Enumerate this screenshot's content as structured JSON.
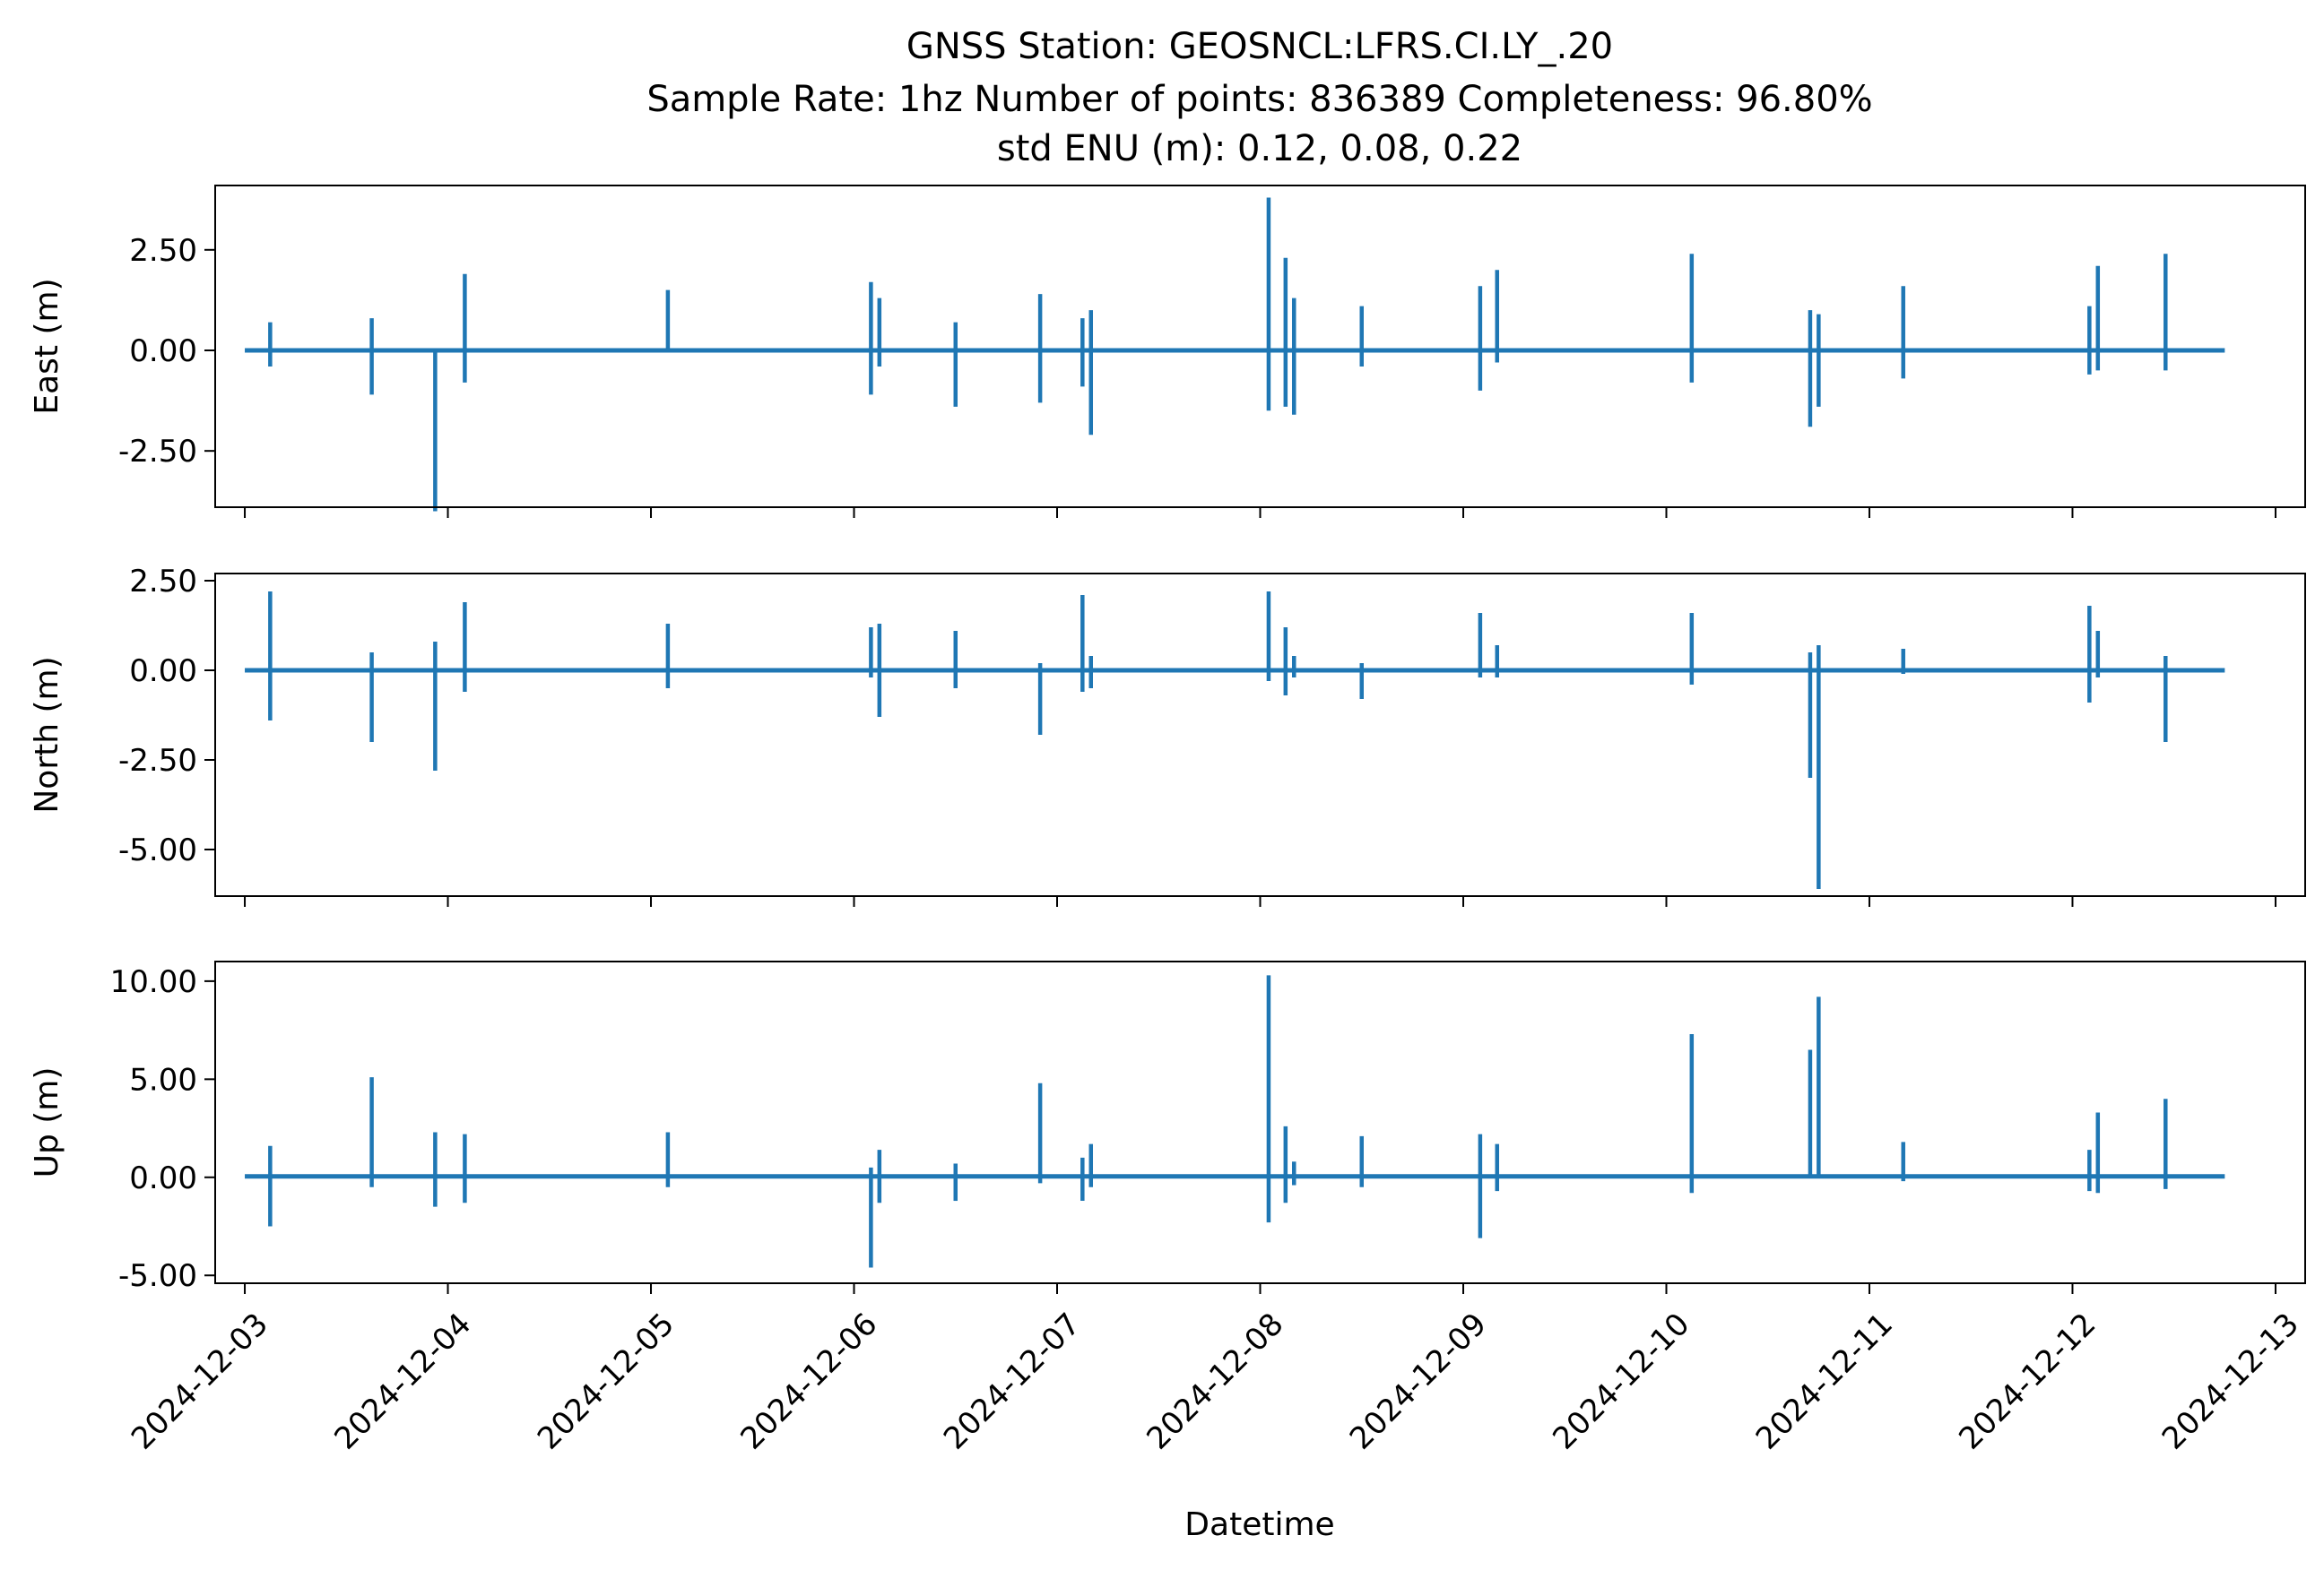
{
  "title_lines": [
    "GNSS Station: GEOSNCL:LFRS.CI.LY_.20",
    "Sample Rate: 1hz   Number of points: 836389    Completeness:  96.80%",
    "std ENU (m):  0.12, 0.08, 0.22"
  ],
  "xlabel": "Datetime",
  "colors": {
    "series": "#1f77b4",
    "axes": "#000000",
    "background": "#ffffff"
  },
  "chart_data": [
    {
      "type": "line",
      "name": "east",
      "ylabel": "East (m)",
      "xlim": [
        "2024-12-02T20:30",
        "2024-12-13T03:30"
      ],
      "ylim": [
        -3.9,
        4.1
      ],
      "yticks": [
        -2.5,
        0.0,
        2.5
      ],
      "ytick_labels": [
        "-2.50",
        "0.00",
        "2.50"
      ],
      "xticks": [
        "2024-12-03",
        "2024-12-04",
        "2024-12-05",
        "2024-12-06",
        "2024-12-07",
        "2024-12-08",
        "2024-12-09",
        "2024-12-10",
        "2024-12-11",
        "2024-12-12",
        "2024-12-13"
      ],
      "xtick_labels": [],
      "grid": false,
      "baseline": 0.0,
      "spikes": [
        {
          "t": "2024-12-03T03:00",
          "min": -0.4,
          "max": 0.7
        },
        {
          "t": "2024-12-03T15:00",
          "min": -1.1,
          "max": 0.8
        },
        {
          "t": "2024-12-03T22:30",
          "min": -4.0,
          "max": 0.0
        },
        {
          "t": "2024-12-04T02:00",
          "min": -0.8,
          "max": 1.9
        },
        {
          "t": "2024-12-05T02:00",
          "min": 0.0,
          "max": 1.5
        },
        {
          "t": "2024-12-06T02:00",
          "min": -1.1,
          "max": 1.7
        },
        {
          "t": "2024-12-06T03:00",
          "min": -0.4,
          "max": 1.3
        },
        {
          "t": "2024-12-06T12:00",
          "min": -1.4,
          "max": 0.7
        },
        {
          "t": "2024-12-06T22:00",
          "min": -1.3,
          "max": 1.4
        },
        {
          "t": "2024-12-07T03:00",
          "min": -0.9,
          "max": 0.8
        },
        {
          "t": "2024-12-07T04:00",
          "min": -2.1,
          "max": 1.0
        },
        {
          "t": "2024-12-08T01:00",
          "min": -1.5,
          "max": 3.8
        },
        {
          "t": "2024-12-08T03:00",
          "min": -1.4,
          "max": 2.3
        },
        {
          "t": "2024-12-08T04:00",
          "min": -1.6,
          "max": 1.3
        },
        {
          "t": "2024-12-08T12:00",
          "min": -0.4,
          "max": 1.1
        },
        {
          "t": "2024-12-09T02:00",
          "min": -1.0,
          "max": 1.6
        },
        {
          "t": "2024-12-09T04:00",
          "min": -0.3,
          "max": 2.0
        },
        {
          "t": "2024-12-10T03:00",
          "min": -0.8,
          "max": 2.4
        },
        {
          "t": "2024-12-10T17:00",
          "min": -1.9,
          "max": 1.0
        },
        {
          "t": "2024-12-10T18:00",
          "min": -1.4,
          "max": 0.9
        },
        {
          "t": "2024-12-11T04:00",
          "min": -0.7,
          "max": 1.6
        },
        {
          "t": "2024-12-12T02:00",
          "min": -0.6,
          "max": 1.1
        },
        {
          "t": "2024-12-12T03:00",
          "min": -0.5,
          "max": 2.1
        },
        {
          "t": "2024-12-12T11:00",
          "min": -0.5,
          "max": 2.4
        }
      ],
      "series_end": "2024-12-12T18:00"
    },
    {
      "type": "line",
      "name": "north",
      "ylabel": "North (m)",
      "xlim": [
        "2024-12-02T20:30",
        "2024-12-13T03:30"
      ],
      "ylim": [
        -6.3,
        2.7
      ],
      "yticks": [
        -5.0,
        -2.5,
        0.0,
        2.5
      ],
      "ytick_labels": [
        "-5.00",
        "-2.50",
        "0.00",
        "2.50"
      ],
      "xticks": [
        "2024-12-03",
        "2024-12-04",
        "2024-12-05",
        "2024-12-06",
        "2024-12-07",
        "2024-12-08",
        "2024-12-09",
        "2024-12-10",
        "2024-12-11",
        "2024-12-12",
        "2024-12-13"
      ],
      "xtick_labels": [],
      "grid": false,
      "baseline": 0.0,
      "spikes": [
        {
          "t": "2024-12-03T03:00",
          "min": -1.4,
          "max": 2.2
        },
        {
          "t": "2024-12-03T15:00",
          "min": -2.0,
          "max": 0.5
        },
        {
          "t": "2024-12-03T22:30",
          "min": -2.8,
          "max": 0.8
        },
        {
          "t": "2024-12-04T02:00",
          "min": -0.6,
          "max": 1.9
        },
        {
          "t": "2024-12-05T02:00",
          "min": -0.5,
          "max": 1.3
        },
        {
          "t": "2024-12-06T02:00",
          "min": -0.2,
          "max": 1.2
        },
        {
          "t": "2024-12-06T03:00",
          "min": -1.3,
          "max": 1.3
        },
        {
          "t": "2024-12-06T12:00",
          "min": -0.5,
          "max": 1.1
        },
        {
          "t": "2024-12-06T22:00",
          "min": -1.8,
          "max": 0.2
        },
        {
          "t": "2024-12-07T03:00",
          "min": -0.6,
          "max": 2.1
        },
        {
          "t": "2024-12-07T04:00",
          "min": -0.5,
          "max": 0.4
        },
        {
          "t": "2024-12-08T01:00",
          "min": -0.3,
          "max": 2.2
        },
        {
          "t": "2024-12-08T03:00",
          "min": -0.7,
          "max": 1.2
        },
        {
          "t": "2024-12-08T04:00",
          "min": -0.2,
          "max": 0.4
        },
        {
          "t": "2024-12-08T12:00",
          "min": -0.8,
          "max": 0.2
        },
        {
          "t": "2024-12-09T02:00",
          "min": -0.2,
          "max": 1.6
        },
        {
          "t": "2024-12-09T04:00",
          "min": -0.2,
          "max": 0.7
        },
        {
          "t": "2024-12-10T03:00",
          "min": -0.4,
          "max": 1.6
        },
        {
          "t": "2024-12-10T17:00",
          "min": -3.0,
          "max": 0.5
        },
        {
          "t": "2024-12-10T18:00",
          "min": -6.1,
          "max": 0.7
        },
        {
          "t": "2024-12-11T04:00",
          "min": -0.1,
          "max": 0.6
        },
        {
          "t": "2024-12-12T02:00",
          "min": -0.9,
          "max": 1.8
        },
        {
          "t": "2024-12-12T03:00",
          "min": -0.2,
          "max": 1.1
        },
        {
          "t": "2024-12-12T11:00",
          "min": -2.0,
          "max": 0.4
        }
      ],
      "series_end": "2024-12-12T18:00"
    },
    {
      "type": "line",
      "name": "up",
      "ylabel": "Up (m)",
      "xlim": [
        "2024-12-02T20:30",
        "2024-12-13T03:30"
      ],
      "ylim": [
        -5.4,
        11.0
      ],
      "yticks": [
        -5.0,
        0.0,
        5.0,
        10.0
      ],
      "ytick_labels": [
        "-5.00",
        "0.00",
        "5.00",
        "10.00"
      ],
      "xticks": [
        "2024-12-03",
        "2024-12-04",
        "2024-12-05",
        "2024-12-06",
        "2024-12-07",
        "2024-12-08",
        "2024-12-09",
        "2024-12-10",
        "2024-12-11",
        "2024-12-12",
        "2024-12-13"
      ],
      "xtick_labels": [
        "2024-12-03",
        "2024-12-04",
        "2024-12-05",
        "2024-12-06",
        "2024-12-07",
        "2024-12-08",
        "2024-12-09",
        "2024-12-10",
        "2024-12-11",
        "2024-12-12",
        "2024-12-13"
      ],
      "grid": false,
      "baseline": 0.05,
      "spikes": [
        {
          "t": "2024-12-03T03:00",
          "min": -2.5,
          "max": 1.6
        },
        {
          "t": "2024-12-03T15:00",
          "min": -0.5,
          "max": 5.1
        },
        {
          "t": "2024-12-03T22:30",
          "min": -1.5,
          "max": 2.3
        },
        {
          "t": "2024-12-04T02:00",
          "min": -1.3,
          "max": 2.2
        },
        {
          "t": "2024-12-05T02:00",
          "min": -0.5,
          "max": 2.3
        },
        {
          "t": "2024-12-06T02:00",
          "min": -4.6,
          "max": 0.5
        },
        {
          "t": "2024-12-06T03:00",
          "min": -1.3,
          "max": 1.4
        },
        {
          "t": "2024-12-06T12:00",
          "min": -1.2,
          "max": 0.7
        },
        {
          "t": "2024-12-06T22:00",
          "min": -0.3,
          "max": 4.8
        },
        {
          "t": "2024-12-07T03:00",
          "min": -1.2,
          "max": 1.0
        },
        {
          "t": "2024-12-07T04:00",
          "min": -0.5,
          "max": 1.7
        },
        {
          "t": "2024-12-08T01:00",
          "min": -2.3,
          "max": 10.3
        },
        {
          "t": "2024-12-08T03:00",
          "min": -1.3,
          "max": 2.6
        },
        {
          "t": "2024-12-08T04:00",
          "min": -0.4,
          "max": 0.8
        },
        {
          "t": "2024-12-08T12:00",
          "min": -0.5,
          "max": 2.1
        },
        {
          "t": "2024-12-09T02:00",
          "min": -3.1,
          "max": 2.2
        },
        {
          "t": "2024-12-09T04:00",
          "min": -0.7,
          "max": 1.7
        },
        {
          "t": "2024-12-10T03:00",
          "min": -0.8,
          "max": 7.3
        },
        {
          "t": "2024-12-10T17:00",
          "min": 0.0,
          "max": 6.5
        },
        {
          "t": "2024-12-10T18:00",
          "min": 0.0,
          "max": 9.2
        },
        {
          "t": "2024-12-11T04:00",
          "min": -0.2,
          "max": 1.8
        },
        {
          "t": "2024-12-12T02:00",
          "min": -0.7,
          "max": 1.4
        },
        {
          "t": "2024-12-12T03:00",
          "min": -0.8,
          "max": 3.3
        },
        {
          "t": "2024-12-12T11:00",
          "min": -0.6,
          "max": 4.0
        }
      ],
      "series_end": "2024-12-12T18:00"
    }
  ]
}
